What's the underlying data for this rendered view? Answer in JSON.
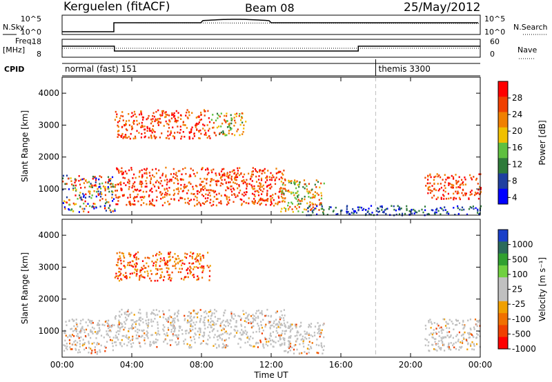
{
  "header": {
    "station": "Kerguelen (fitACF)",
    "beam": "Beam 08",
    "date": "25/May/2012"
  },
  "panels": {
    "nsky_label": "N.Sky",
    "nsearch_label": "N.Search",
    "freq_label_1": "Freq.",
    "freq_label_2": "[MHz]",
    "nave_label": "Nave",
    "cpid_label": "CPID",
    "nsky_ticks": [
      "10^5",
      "10^0"
    ],
    "nsearch_ticks": [
      "10^5",
      "10^0"
    ],
    "freq_ticks": [
      "18",
      "8"
    ],
    "nave_ticks": [
      "60",
      "0"
    ],
    "cpid_segments": [
      {
        "label": "normal (fast) 151",
        "start_hour": 0
      },
      {
        "label": "themis 3300",
        "start_hour": 18
      }
    ]
  },
  "colors": {
    "power_scale": [
      "#0000ff",
      "#1f3fa0",
      "#2e7a3a",
      "#5fc040",
      "#f0c000",
      "#f08000",
      "#f04000",
      "#ff0000"
    ],
    "velocity_scale": [
      "#1a3fc8",
      "#2a6a5a",
      "#30a030",
      "#70d040",
      "#c0c0c0",
      "#c0c0c0",
      "#f0a000",
      "#f07000",
      "#f04000",
      "#ff0000"
    ],
    "gate_dashed_line": "#c0c0c0"
  },
  "chart_data": [
    {
      "type": "heatmap",
      "name": "power",
      "ylabel": "Slant Range [km]",
      "xlabel": "Time UT",
      "x_ticks": [
        "00:00",
        "04:00",
        "08:00",
        "12:00",
        "16:00",
        "20:00",
        "00:00"
      ],
      "y_ticks": [
        1000,
        2000,
        3000,
        4000
      ],
      "ylim": [
        180,
        4500
      ],
      "xlim_hours": [
        0,
        24
      ],
      "colorbar_label": "Power [dB]",
      "colorbar_ticks": [
        "28",
        "24",
        "20",
        "16",
        "12",
        "8",
        "4"
      ],
      "scatter_regions": [
        {
          "start_hour": 0.0,
          "end_hour": 3.0,
          "range_lo": 300,
          "range_hi": 1450,
          "level": "mixed"
        },
        {
          "start_hour": 3.0,
          "end_hour": 12.8,
          "range_lo": 500,
          "range_hi": 1700,
          "level": "strong"
        },
        {
          "start_hour": 3.0,
          "end_hour": 8.5,
          "range_lo": 2600,
          "range_hi": 3500,
          "level": "strong"
        },
        {
          "start_hour": 8.5,
          "end_hour": 10.5,
          "range_lo": 2700,
          "range_hi": 3400,
          "level": "medium"
        },
        {
          "start_hour": 12.5,
          "end_hour": 15.0,
          "range_lo": 300,
          "range_hi": 1300,
          "level": "medium"
        },
        {
          "start_hour": 20.8,
          "end_hour": 24.0,
          "range_lo": 700,
          "range_hi": 1500,
          "level": "strong"
        },
        {
          "start_hour": 14.0,
          "end_hour": 24.0,
          "range_lo": 200,
          "range_hi": 500,
          "level": "weak"
        }
      ]
    },
    {
      "type": "heatmap",
      "name": "velocity",
      "ylabel": "Slant Range [km]",
      "xlabel": "Time UT",
      "x_ticks": [
        "00:00",
        "04:00",
        "08:00",
        "12:00",
        "16:00",
        "20:00",
        "00:00"
      ],
      "y_ticks": [
        1000,
        2000,
        3000,
        4000
      ],
      "ylim": [
        180,
        4500
      ],
      "xlim_hours": [
        0,
        24
      ],
      "colorbar_label": "Velocity [m s⁻¹]",
      "colorbar_ticks": [
        "1000",
        "500",
        "100",
        "25",
        "-25",
        "-100",
        "-500",
        "-1000"
      ],
      "scatter_regions": [
        {
          "start_hour": 0.0,
          "end_hour": 3.0,
          "range_lo": 300,
          "range_hi": 1400,
          "level": "ground"
        },
        {
          "start_hour": 3.0,
          "end_hour": 12.8,
          "range_lo": 500,
          "range_hi": 1700,
          "level": "ground"
        },
        {
          "start_hour": 3.0,
          "end_hour": 8.5,
          "range_lo": 2600,
          "range_hi": 3500,
          "level": "negative"
        },
        {
          "start_hour": 12.5,
          "end_hour": 15.0,
          "range_lo": 300,
          "range_hi": 1300,
          "level": "ground"
        },
        {
          "start_hour": 20.8,
          "end_hour": 24.0,
          "range_lo": 400,
          "range_hi": 1400,
          "level": "ground"
        }
      ]
    }
  ]
}
